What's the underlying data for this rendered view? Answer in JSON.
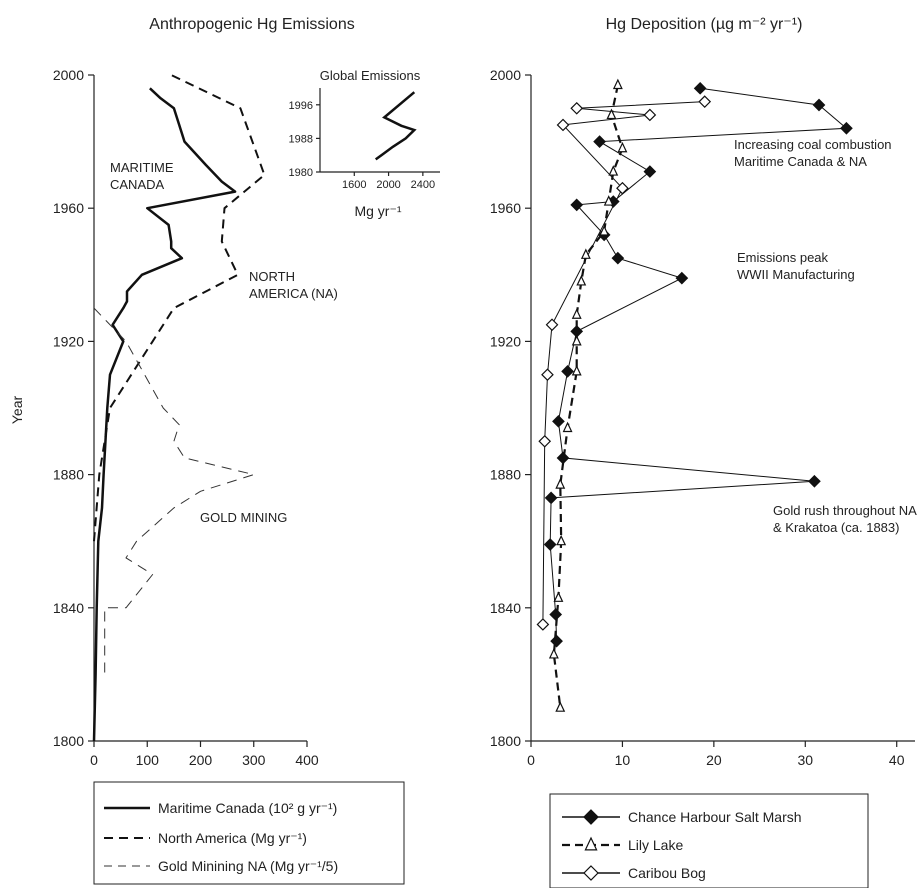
{
  "chart_data": [
    {
      "type": "line",
      "title": "Anthropogenic Hg Emissions",
      "ylabel": "Year",
      "xlabel": "",
      "xlim": [
        0,
        400
      ],
      "ylim": [
        1800,
        2000
      ],
      "xticks": [
        "0",
        "100",
        "200",
        "300",
        "400"
      ],
      "yticks": [
        "1800",
        "1840",
        "1880",
        "1920",
        "1960",
        "2000"
      ],
      "series": [
        {
          "name": "Maritime Canada (10² g yr⁻¹)",
          "style": "solid",
          "points": [
            [
              0,
              1800
            ],
            [
              3,
              1820
            ],
            [
              5,
              1840
            ],
            [
              8,
              1860
            ],
            [
              15,
              1870
            ],
            [
              18,
              1880
            ],
            [
              25,
              1900
            ],
            [
              30,
              1910
            ],
            [
              55,
              1920
            ],
            [
              35,
              1925
            ],
            [
              55,
              1930
            ],
            [
              62,
              1932
            ],
            [
              62,
              1935
            ],
            [
              90,
              1940
            ],
            [
              165,
              1945
            ],
            [
              145,
              1948
            ],
            [
              145,
              1950
            ],
            [
              140,
              1955
            ],
            [
              100,
              1960
            ],
            [
              265,
              1965
            ],
            [
              240,
              1968
            ],
            [
              210,
              1973
            ],
            [
              170,
              1980
            ],
            [
              160,
              1985
            ],
            [
              150,
              1990
            ],
            [
              125,
              1993
            ],
            [
              105,
              1996
            ]
          ]
        },
        {
          "name": "North America (Mg yr⁻¹)",
          "style": "dashed",
          "points": [
            [
              0,
              1860
            ],
            [
              10,
              1880
            ],
            [
              30,
              1900
            ],
            [
              70,
              1910
            ],
            [
              110,
              1920
            ],
            [
              150,
              1930
            ],
            [
              270,
              1940
            ],
            [
              240,
              1950
            ],
            [
              245,
              1960
            ],
            [
              320,
              1970
            ],
            [
              275,
              1990
            ],
            [
              145,
              2000
            ]
          ]
        },
        {
          "name": "Gold Minining NA (Mg yr⁻¹/5)",
          "style": "thin-dashed",
          "points": [
            [
              0,
              1930
            ],
            [
              60,
              1920
            ],
            [
              130,
              1900
            ],
            [
              160,
              1895
            ],
            [
              150,
              1890
            ],
            [
              170,
              1885
            ],
            [
              300,
              1880
            ],
            [
              200,
              1875
            ],
            [
              150,
              1870
            ],
            [
              80,
              1860
            ],
            [
              60,
              1855
            ],
            [
              110,
              1850
            ],
            [
              60,
              1840
            ],
            [
              20,
              1840
            ],
            [
              20,
              1830
            ],
            [
              20,
              1820
            ]
          ]
        }
      ],
      "annotations": [
        "MARITIME",
        "CANADA",
        "NORTH",
        "AMERICA (NA)",
        "GOLD MINING"
      ],
      "legend_position": "bottom",
      "inset": {
        "title": "Global Emissions",
        "xlabel": "Mg yr⁻¹",
        "xlim": [
          1200,
          2600
        ],
        "ylim": [
          1980,
          2000
        ],
        "xticks": [
          "1600",
          "2000",
          "2400"
        ],
        "yticks": [
          "1980",
          "1988",
          "1996"
        ],
        "points": [
          [
            1850,
            1983
          ],
          [
            2050,
            1986
          ],
          [
            2200,
            1988
          ],
          [
            2300,
            1990
          ],
          [
            2150,
            1991
          ],
          [
            1950,
            1993
          ],
          [
            2300,
            1999
          ]
        ]
      }
    },
    {
      "type": "scatter",
      "title": "Hg Deposition (µg m⁻² yr⁻¹)",
      "xlabel": "",
      "ylabel": "",
      "xlim": [
        0,
        42
      ],
      "ylim": [
        1800,
        2000
      ],
      "xticks": [
        "0",
        "10",
        "20",
        "30",
        "40"
      ],
      "yticks": [
        "1800",
        "1840",
        "1880",
        "1920",
        "1960",
        "2000"
      ],
      "series": [
        {
          "name": "Chance Harbour Salt Marsh",
          "marker": "filled-diamond",
          "points": [
            [
              18.5,
              1996
            ],
            [
              31.5,
              1991
            ],
            [
              34.5,
              1984
            ],
            [
              7.5,
              1980
            ],
            [
              13,
              1971
            ],
            [
              9,
              1962
            ],
            [
              5,
              1961
            ],
            [
              8,
              1952
            ],
            [
              9.5,
              1945
            ],
            [
              16.5,
              1939
            ],
            [
              5,
              1923
            ],
            [
              4,
              1911
            ],
            [
              3,
              1896
            ],
            [
              3.5,
              1885
            ],
            [
              31,
              1878
            ],
            [
              2.2,
              1873
            ],
            [
              2.1,
              1859
            ],
            [
              2.7,
              1838
            ],
            [
              2.8,
              1830
            ]
          ]
        },
        {
          "name": "Lily Lake",
          "marker": "open-triangle",
          "points": [
            [
              9.5,
              1997
            ],
            [
              8.8,
              1988
            ],
            [
              10,
              1978
            ],
            [
              9,
              1971
            ],
            [
              8.5,
              1962
            ],
            [
              8,
              1953
            ],
            [
              6,
              1946
            ],
            [
              5.5,
              1938
            ],
            [
              5,
              1928
            ],
            [
              5,
              1920
            ],
            [
              5,
              1911
            ],
            [
              4,
              1894
            ],
            [
              3.2,
              1877
            ],
            [
              3.3,
              1860
            ],
            [
              3,
              1843
            ],
            [
              2.5,
              1826
            ],
            [
              3.2,
              1810
            ]
          ]
        },
        {
          "name": "Caribou Bog",
          "marker": "open-diamond",
          "points": [
            [
              19,
              1992
            ],
            [
              5,
              1990
            ],
            [
              13,
              1988
            ],
            [
              3.5,
              1985
            ],
            [
              10,
              1966
            ],
            [
              2.3,
              1925
            ],
            [
              1.8,
              1910
            ],
            [
              1.5,
              1890
            ],
            [
              1.3,
              1835
            ]
          ]
        }
      ],
      "annotations": [
        "Increasing coal combustion",
        "Maritime Canada & NA",
        "Emissions peak",
        "WWII Manufacturing",
        "Gold rush throughout NA",
        "& Krakatoa (ca. 1883)"
      ],
      "legend_position": "bottom"
    }
  ]
}
